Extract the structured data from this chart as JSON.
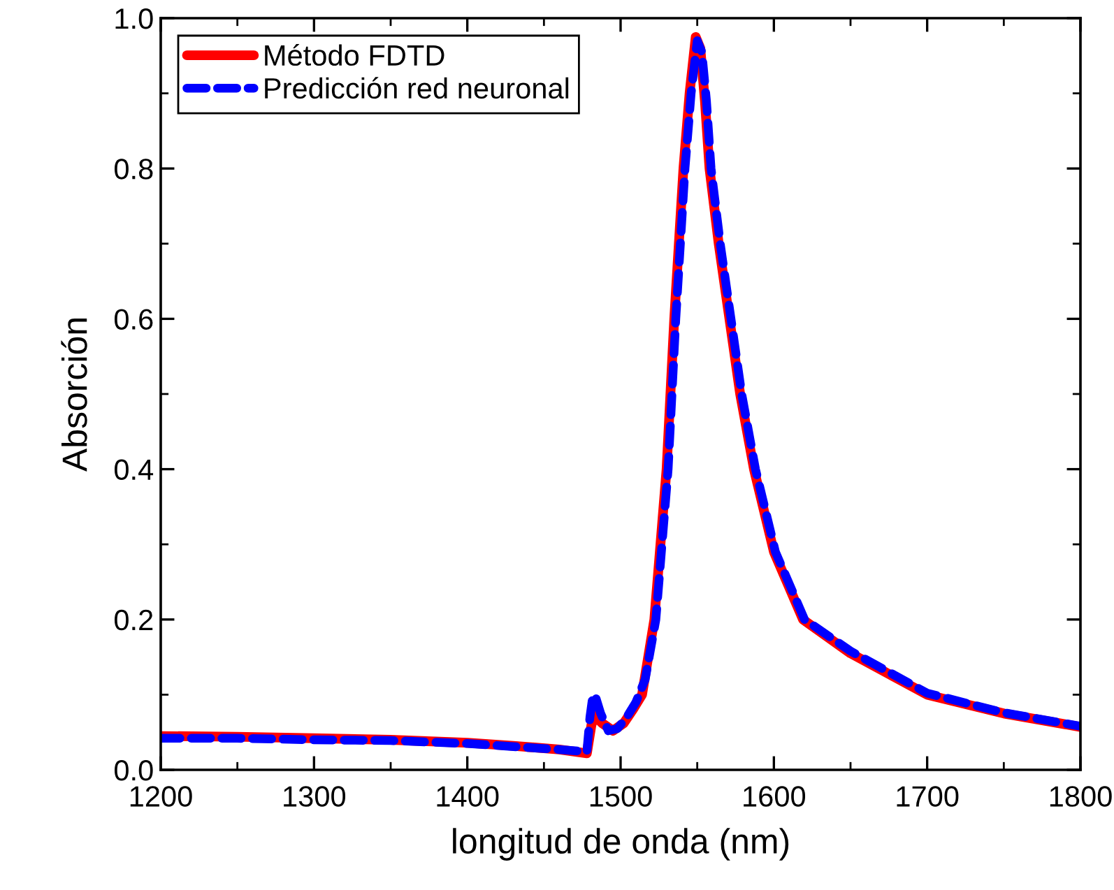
{
  "chart_data": {
    "type": "line",
    "xlabel": "longitud de onda (nm)",
    "ylabel": "Absorción",
    "xlim": [
      1200,
      1800
    ],
    "ylim": [
      0,
      1.0
    ],
    "xticks": [
      1200,
      1300,
      1400,
      1500,
      1600,
      1700,
      1800
    ],
    "yticks": [
      {
        "value": 0,
        "label": "0.0"
      },
      0.2,
      0.4,
      0.6,
      0.8,
      {
        "value": 1.0,
        "label": "1.0"
      }
    ],
    "grid": false,
    "legend": "top left",
    "series": [
      {
        "name": "Método FDTD",
        "color": "#ff0000",
        "line_style": "solid",
        "x": [
          1200,
          1250,
          1300,
          1350,
          1400,
          1430,
          1460,
          1478,
          1481,
          1483,
          1488,
          1495,
          1502,
          1508,
          1514,
          1522,
          1530,
          1535,
          1541,
          1545,
          1549,
          1552,
          1555,
          1558,
          1564,
          1571,
          1578,
          1587,
          1600,
          1619,
          1650,
          1700,
          1750,
          1800
        ],
        "values": [
          0.045,
          0.044,
          0.042,
          0.04,
          0.036,
          0.032,
          0.027,
          0.022,
          0.06,
          0.072,
          0.062,
          0.052,
          0.062,
          0.08,
          0.1,
          0.2,
          0.4,
          0.6,
          0.8,
          0.9,
          0.975,
          0.96,
          0.89,
          0.8,
          0.7,
          0.6,
          0.5,
          0.4,
          0.29,
          0.2,
          0.155,
          0.1,
          0.075,
          0.057
        ]
      },
      {
        "name": "Predicción red neuronal",
        "color": "#0000ff",
        "line_style": "dashed",
        "x": [
          1200,
          1250,
          1300,
          1350,
          1400,
          1430,
          1460,
          1478,
          1480,
          1482,
          1484,
          1487,
          1492,
          1498,
          1504,
          1510,
          1516,
          1523,
          1531,
          1536,
          1542,
          1546,
          1550,
          1553,
          1556,
          1559,
          1565,
          1572,
          1579,
          1588,
          1601,
          1620,
          1650,
          1700,
          1750,
          1800
        ],
        "values": [
          0.042,
          0.042,
          0.04,
          0.039,
          0.035,
          0.031,
          0.027,
          0.024,
          0.07,
          0.1,
          0.095,
          0.075,
          0.052,
          0.055,
          0.07,
          0.09,
          0.12,
          0.2,
          0.4,
          0.6,
          0.8,
          0.9,
          0.97,
          0.955,
          0.89,
          0.8,
          0.7,
          0.6,
          0.5,
          0.4,
          0.29,
          0.2,
          0.158,
          0.102,
          0.076,
          0.058
        ]
      }
    ]
  }
}
